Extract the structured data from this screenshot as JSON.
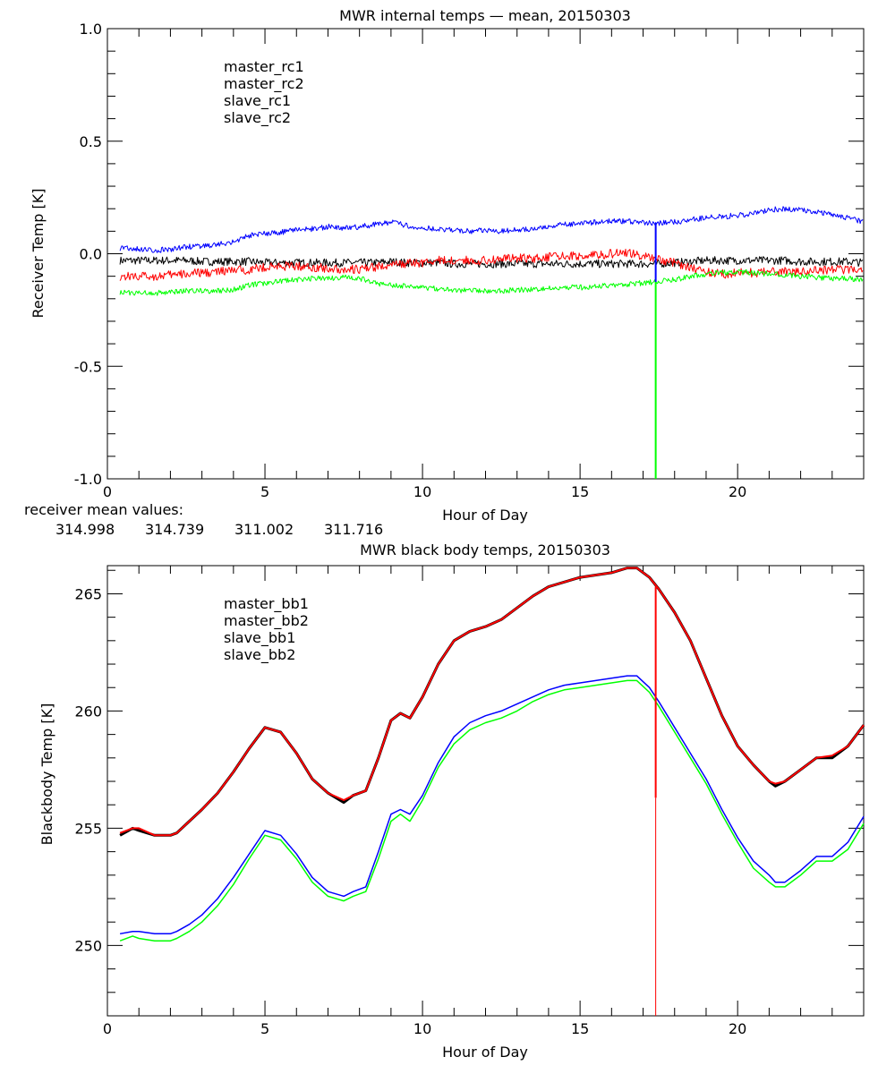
{
  "chart_data": [
    {
      "type": "line",
      "title": "MWR internal temps — mean, 20150303",
      "xlabel": "Hour of Day",
      "ylabel": "Receiver Temp [K]",
      "xlim": [
        0,
        24
      ],
      "ylim": [
        -1.0,
        1.0
      ],
      "xticks": [
        "0",
        "5",
        "10",
        "15",
        "20"
      ],
      "xtick_values": [
        0,
        5,
        10,
        15,
        20
      ],
      "yticks": [
        "1.0",
        "0.5",
        "0.0",
        "-0.5",
        "-1.0"
      ],
      "ytick_values": [
        1.0,
        0.5,
        0.0,
        -0.5,
        -1.0
      ],
      "legend_position": "top-left",
      "grid": false,
      "x": [
        0.4,
        1.0,
        1.5,
        2.0,
        2.5,
        3.0,
        3.5,
        4.0,
        4.5,
        5.0,
        5.5,
        6.0,
        6.5,
        7.0,
        7.5,
        8.0,
        8.5,
        9.0,
        9.5,
        10.0,
        10.5,
        11.0,
        11.5,
        12.0,
        12.5,
        13.0,
        13.5,
        14.0,
        14.5,
        15.0,
        15.5,
        16.0,
        16.5,
        17.0,
        17.4,
        18.0,
        18.5,
        19.0,
        19.5,
        20.0,
        20.5,
        21.0,
        21.5,
        22.0,
        22.5,
        23.0,
        23.5,
        24.0
      ],
      "series": [
        {
          "name": "master_rc1",
          "color": "#000000",
          "values": [
            -0.03,
            -0.03,
            -0.03,
            -0.03,
            -0.03,
            -0.035,
            -0.035,
            -0.035,
            -0.035,
            -0.04,
            -0.04,
            -0.04,
            -0.04,
            -0.04,
            -0.04,
            -0.04,
            -0.04,
            -0.035,
            -0.04,
            -0.04,
            -0.04,
            -0.045,
            -0.045,
            -0.045,
            -0.045,
            -0.045,
            -0.045,
            -0.045,
            -0.045,
            -0.045,
            -0.045,
            -0.045,
            -0.045,
            -0.045,
            -0.045,
            -0.04,
            -0.035,
            -0.03,
            -0.03,
            -0.03,
            -0.03,
            -0.03,
            -0.03,
            -0.035,
            -0.035,
            -0.035,
            -0.035,
            -0.04
          ]
        },
        {
          "name": "master_rc2",
          "color": "#ff0000",
          "values": [
            -0.1,
            -0.1,
            -0.1,
            -0.095,
            -0.09,
            -0.085,
            -0.08,
            -0.075,
            -0.07,
            -0.06,
            -0.055,
            -0.055,
            -0.06,
            -0.065,
            -0.07,
            -0.07,
            -0.06,
            -0.05,
            -0.045,
            -0.04,
            -0.03,
            -0.03,
            -0.03,
            -0.03,
            -0.02,
            -0.02,
            -0.02,
            -0.015,
            -0.01,
            -0.01,
            -0.005,
            0.0,
            0.005,
            -0.01,
            -0.02,
            -0.04,
            -0.06,
            -0.08,
            -0.09,
            -0.085,
            -0.085,
            -0.08,
            -0.08,
            -0.08,
            -0.075,
            -0.07,
            -0.07,
            -0.07
          ]
        },
        {
          "name": "slave_rc1",
          "color": "#0000ff",
          "values": [
            0.025,
            0.02,
            0.015,
            0.02,
            0.03,
            0.035,
            0.04,
            0.055,
            0.08,
            0.09,
            0.095,
            0.105,
            0.11,
            0.12,
            0.115,
            0.12,
            0.13,
            0.14,
            0.125,
            0.115,
            0.11,
            0.105,
            0.1,
            0.105,
            0.1,
            0.105,
            0.11,
            0.12,
            0.13,
            0.135,
            0.14,
            0.145,
            0.145,
            0.14,
            0.135,
            0.14,
            0.15,
            0.16,
            0.165,
            0.17,
            0.18,
            0.195,
            0.2,
            0.195,
            0.185,
            0.175,
            0.16,
            0.14
          ]
        },
        {
          "name": "slave_rc2",
          "color": "#00ff00",
          "values": [
            -0.17,
            -0.175,
            -0.175,
            -0.17,
            -0.165,
            -0.165,
            -0.165,
            -0.16,
            -0.14,
            -0.13,
            -0.12,
            -0.115,
            -0.11,
            -0.11,
            -0.105,
            -0.11,
            -0.13,
            -0.14,
            -0.145,
            -0.15,
            -0.155,
            -0.16,
            -0.165,
            -0.165,
            -0.165,
            -0.16,
            -0.16,
            -0.155,
            -0.15,
            -0.15,
            -0.145,
            -0.14,
            -0.135,
            -0.13,
            -0.125,
            -0.115,
            -0.1,
            -0.09,
            -0.085,
            -0.08,
            -0.085,
            -0.09,
            -0.095,
            -0.1,
            -0.105,
            -0.11,
            -0.11,
            -0.115
          ]
        }
      ],
      "spike": {
        "x": 17.4,
        "series": [
          "slave_rc1",
          "slave_rc2"
        ],
        "blue_to": 0.135,
        "green_to": -1.0
      },
      "annotation": {
        "label": "receiver mean values:",
        "values": [
          {
            "text": "314.998",
            "color": "#000000"
          },
          {
            "text": "314.739",
            "color": "#ff0000"
          },
          {
            "text": "311.002",
            "color": "#0000ff"
          },
          {
            "text": "311.716",
            "color": "#00ff00"
          }
        ]
      }
    },
    {
      "type": "line",
      "title": "MWR black body temps, 20150303",
      "xlabel": "Hour of Day",
      "ylabel": "Blackbody Temp [K]",
      "xlim": [
        0,
        24
      ],
      "ylim": [
        247.0,
        266.2
      ],
      "xticks": [
        "0",
        "5",
        "10",
        "15",
        "20"
      ],
      "xtick_values": [
        0,
        5,
        10,
        15,
        20
      ],
      "yticks": [
        "265",
        "260",
        "255",
        "250"
      ],
      "ytick_values": [
        265,
        260,
        255,
        250
      ],
      "legend_position": "top-left",
      "grid": false,
      "x": [
        0.4,
        0.8,
        1.0,
        1.5,
        2.0,
        2.2,
        2.6,
        3.0,
        3.5,
        4.0,
        4.5,
        5.0,
        5.5,
        6.0,
        6.5,
        7.0,
        7.5,
        7.8,
        8.2,
        8.6,
        9.0,
        9.3,
        9.6,
        10.0,
        10.5,
        11.0,
        11.5,
        12.0,
        12.5,
        13.0,
        13.5,
        14.0,
        14.5,
        15.0,
        15.5,
        16.0,
        16.5,
        16.8,
        17.2,
        17.5,
        18.0,
        18.5,
        19.0,
        19.5,
        20.0,
        20.5,
        21.0,
        21.2,
        21.5,
        22.0,
        22.5,
        23.0,
        23.5,
        24.0
      ],
      "series": [
        {
          "name": "master_bb1",
          "color": "#000000",
          "values": [
            254.7,
            255.0,
            254.9,
            254.7,
            254.7,
            254.8,
            255.3,
            255.8,
            256.5,
            257.4,
            258.4,
            259.3,
            259.1,
            258.2,
            257.1,
            256.5,
            256.1,
            256.4,
            256.6,
            258.0,
            259.6,
            259.9,
            259.7,
            260.6,
            262.0,
            263.0,
            263.4,
            263.6,
            263.9,
            264.4,
            264.9,
            265.3,
            265.5,
            265.7,
            265.8,
            265.9,
            266.1,
            266.1,
            265.7,
            265.2,
            264.2,
            263.0,
            261.4,
            259.8,
            258.5,
            257.7,
            257.0,
            256.8,
            257.0,
            257.5,
            258.0,
            258.0,
            258.5,
            259.4
          ]
        },
        {
          "name": "master_bb2",
          "color": "#ff0000",
          "values": [
            254.8,
            255.0,
            255.0,
            254.7,
            254.7,
            254.8,
            255.3,
            255.8,
            256.5,
            257.4,
            258.4,
            259.3,
            259.1,
            258.2,
            257.1,
            256.5,
            256.2,
            256.4,
            256.6,
            258.0,
            259.6,
            259.9,
            259.7,
            260.6,
            262.0,
            263.0,
            263.4,
            263.6,
            263.9,
            264.4,
            264.9,
            265.3,
            265.5,
            265.7,
            265.8,
            265.9,
            266.1,
            266.1,
            265.7,
            265.2,
            264.2,
            263.0,
            261.4,
            259.8,
            258.5,
            257.7,
            257.0,
            256.9,
            257.0,
            257.5,
            258.0,
            258.1,
            258.5,
            259.4
          ]
        },
        {
          "name": "slave_bb1",
          "color": "#0000ff",
          "values": [
            250.5,
            250.6,
            250.6,
            250.5,
            250.5,
            250.6,
            250.9,
            251.3,
            252.0,
            252.9,
            253.9,
            254.9,
            254.7,
            253.9,
            252.9,
            252.3,
            252.1,
            252.3,
            252.5,
            254.0,
            255.6,
            255.8,
            255.6,
            256.4,
            257.8,
            258.9,
            259.5,
            259.8,
            260.0,
            260.3,
            260.6,
            260.9,
            261.1,
            261.2,
            261.3,
            261.4,
            261.5,
            261.5,
            261.0,
            260.4,
            259.3,
            258.2,
            257.1,
            255.8,
            254.6,
            253.6,
            253.0,
            252.7,
            252.7,
            253.2,
            253.8,
            253.8,
            254.4,
            255.5
          ]
        },
        {
          "name": "slave_bb2",
          "color": "#00ff00",
          "values": [
            250.2,
            250.4,
            250.3,
            250.2,
            250.2,
            250.3,
            250.6,
            251.0,
            251.7,
            252.6,
            253.7,
            254.7,
            254.5,
            253.7,
            252.7,
            252.1,
            251.9,
            252.1,
            252.3,
            253.7,
            255.3,
            255.6,
            255.3,
            256.2,
            257.6,
            258.6,
            259.2,
            259.5,
            259.7,
            260.0,
            260.4,
            260.7,
            260.9,
            261.0,
            261.1,
            261.2,
            261.3,
            261.3,
            260.8,
            260.2,
            259.1,
            258.0,
            256.9,
            255.6,
            254.4,
            253.3,
            252.7,
            252.5,
            252.5,
            253.0,
            253.6,
            253.6,
            254.1,
            255.2
          ]
        }
      ],
      "spike": {
        "x": 17.4,
        "series": [
          "master_bb2"
        ],
        "thick_from": 265.3,
        "thick_to": 256.3,
        "thin_to": 247.0
      }
    }
  ]
}
